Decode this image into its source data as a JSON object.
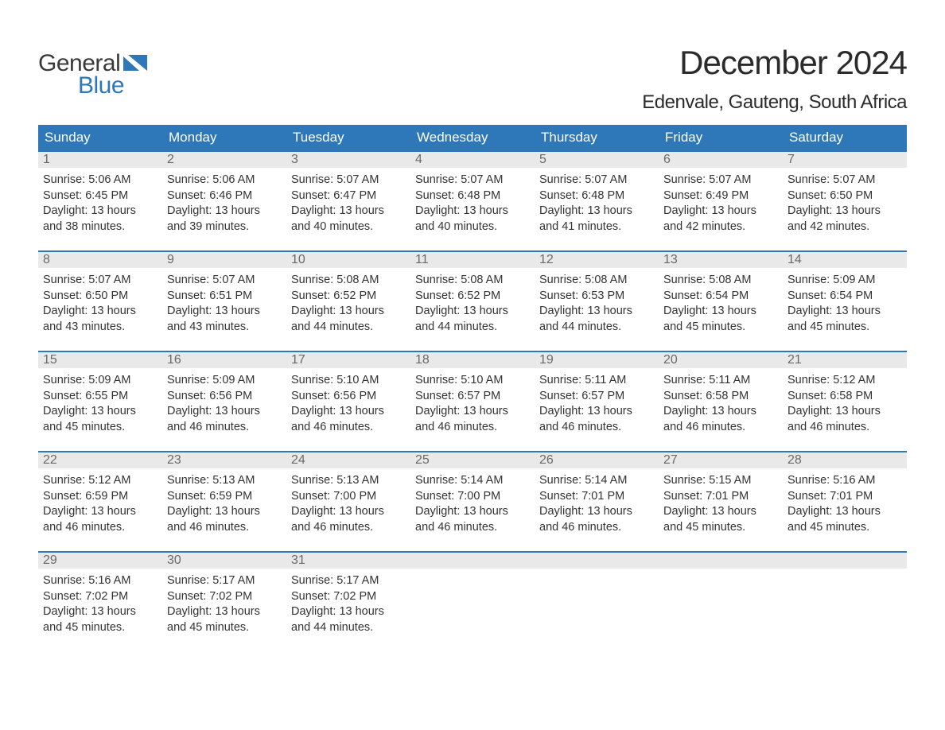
{
  "logo": {
    "word1": "General",
    "word2": "Blue"
  },
  "title": "December 2024",
  "location": "Edenvale, Gauteng, South Africa",
  "colors": {
    "header_bg": "#2e77b8",
    "header_text": "#ffffff",
    "daynum_bg": "#e9e9e9",
    "daynum_text": "#6a6a6a",
    "body_text": "#333333",
    "rule": "#2e77b8",
    "page_bg": "#ffffff",
    "logo_gray": "#3a3a3a",
    "logo_blue": "#2e77b8"
  },
  "typography": {
    "title_fontsize": 42,
    "location_fontsize": 24,
    "dow_fontsize": 17,
    "daynum_fontsize": 16,
    "body_fontsize": 14.5
  },
  "layout": {
    "columns": 7,
    "rows": 5,
    "cell_min_height": 124
  },
  "dow": [
    "Sunday",
    "Monday",
    "Tuesday",
    "Wednesday",
    "Thursday",
    "Friday",
    "Saturday"
  ],
  "days": [
    {
      "n": "1",
      "sunrise": "5:06 AM",
      "sunset": "6:45 PM",
      "dl1": "13 hours",
      "dl2": "and 38 minutes."
    },
    {
      "n": "2",
      "sunrise": "5:06 AM",
      "sunset": "6:46 PM",
      "dl1": "13 hours",
      "dl2": "and 39 minutes."
    },
    {
      "n": "3",
      "sunrise": "5:07 AM",
      "sunset": "6:47 PM",
      "dl1": "13 hours",
      "dl2": "and 40 minutes."
    },
    {
      "n": "4",
      "sunrise": "5:07 AM",
      "sunset": "6:48 PM",
      "dl1": "13 hours",
      "dl2": "and 40 minutes."
    },
    {
      "n": "5",
      "sunrise": "5:07 AM",
      "sunset": "6:48 PM",
      "dl1": "13 hours",
      "dl2": "and 41 minutes."
    },
    {
      "n": "6",
      "sunrise": "5:07 AM",
      "sunset": "6:49 PM",
      "dl1": "13 hours",
      "dl2": "and 42 minutes."
    },
    {
      "n": "7",
      "sunrise": "5:07 AM",
      "sunset": "6:50 PM",
      "dl1": "13 hours",
      "dl2": "and 42 minutes."
    },
    {
      "n": "8",
      "sunrise": "5:07 AM",
      "sunset": "6:50 PM",
      "dl1": "13 hours",
      "dl2": "and 43 minutes."
    },
    {
      "n": "9",
      "sunrise": "5:07 AM",
      "sunset": "6:51 PM",
      "dl1": "13 hours",
      "dl2": "and 43 minutes."
    },
    {
      "n": "10",
      "sunrise": "5:08 AM",
      "sunset": "6:52 PM",
      "dl1": "13 hours",
      "dl2": "and 44 minutes."
    },
    {
      "n": "11",
      "sunrise": "5:08 AM",
      "sunset": "6:52 PM",
      "dl1": "13 hours",
      "dl2": "and 44 minutes."
    },
    {
      "n": "12",
      "sunrise": "5:08 AM",
      "sunset": "6:53 PM",
      "dl1": "13 hours",
      "dl2": "and 44 minutes."
    },
    {
      "n": "13",
      "sunrise": "5:08 AM",
      "sunset": "6:54 PM",
      "dl1": "13 hours",
      "dl2": "and 45 minutes."
    },
    {
      "n": "14",
      "sunrise": "5:09 AM",
      "sunset": "6:54 PM",
      "dl1": "13 hours",
      "dl2": "and 45 minutes."
    },
    {
      "n": "15",
      "sunrise": "5:09 AM",
      "sunset": "6:55 PM",
      "dl1": "13 hours",
      "dl2": "and 45 minutes."
    },
    {
      "n": "16",
      "sunrise": "5:09 AM",
      "sunset": "6:56 PM",
      "dl1": "13 hours",
      "dl2": "and 46 minutes."
    },
    {
      "n": "17",
      "sunrise": "5:10 AM",
      "sunset": "6:56 PM",
      "dl1": "13 hours",
      "dl2": "and 46 minutes."
    },
    {
      "n": "18",
      "sunrise": "5:10 AM",
      "sunset": "6:57 PM",
      "dl1": "13 hours",
      "dl2": "and 46 minutes."
    },
    {
      "n": "19",
      "sunrise": "5:11 AM",
      "sunset": "6:57 PM",
      "dl1": "13 hours",
      "dl2": "and 46 minutes."
    },
    {
      "n": "20",
      "sunrise": "5:11 AM",
      "sunset": "6:58 PM",
      "dl1": "13 hours",
      "dl2": "and 46 minutes."
    },
    {
      "n": "21",
      "sunrise": "5:12 AM",
      "sunset": "6:58 PM",
      "dl1": "13 hours",
      "dl2": "and 46 minutes."
    },
    {
      "n": "22",
      "sunrise": "5:12 AM",
      "sunset": "6:59 PM",
      "dl1": "13 hours",
      "dl2": "and 46 minutes."
    },
    {
      "n": "23",
      "sunrise": "5:13 AM",
      "sunset": "6:59 PM",
      "dl1": "13 hours",
      "dl2": "and 46 minutes."
    },
    {
      "n": "24",
      "sunrise": "5:13 AM",
      "sunset": "7:00 PM",
      "dl1": "13 hours",
      "dl2": "and 46 minutes."
    },
    {
      "n": "25",
      "sunrise": "5:14 AM",
      "sunset": "7:00 PM",
      "dl1": "13 hours",
      "dl2": "and 46 minutes."
    },
    {
      "n": "26",
      "sunrise": "5:14 AM",
      "sunset": "7:01 PM",
      "dl1": "13 hours",
      "dl2": "and 46 minutes."
    },
    {
      "n": "27",
      "sunrise": "5:15 AM",
      "sunset": "7:01 PM",
      "dl1": "13 hours",
      "dl2": "and 45 minutes."
    },
    {
      "n": "28",
      "sunrise": "5:16 AM",
      "sunset": "7:01 PM",
      "dl1": "13 hours",
      "dl2": "and 45 minutes."
    },
    {
      "n": "29",
      "sunrise": "5:16 AM",
      "sunset": "7:02 PM",
      "dl1": "13 hours",
      "dl2": "and 45 minutes."
    },
    {
      "n": "30",
      "sunrise": "5:17 AM",
      "sunset": "7:02 PM",
      "dl1": "13 hours",
      "dl2": "and 45 minutes."
    },
    {
      "n": "31",
      "sunrise": "5:17 AM",
      "sunset": "7:02 PM",
      "dl1": "13 hours",
      "dl2": "and 44 minutes."
    }
  ],
  "labels": {
    "sunrise": "Sunrise:",
    "sunset": "Sunset:",
    "daylight": "Daylight:"
  }
}
